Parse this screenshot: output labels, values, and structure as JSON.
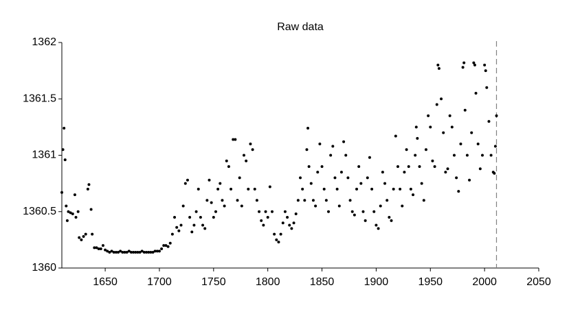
{
  "chart_data": {
    "type": "scatter",
    "title": "Raw data",
    "x": [
      1610,
      1611,
      1612,
      1613,
      1614,
      1615,
      1616,
      1618,
      1620,
      1622,
      1623,
      1625,
      1626,
      1628,
      1630,
      1632,
      1634,
      1635,
      1637,
      1638,
      1640,
      1642,
      1644,
      1646,
      1648,
      1650,
      1652,
      1654,
      1656,
      1658,
      1660,
      1662,
      1664,
      1666,
      1668,
      1670,
      1672,
      1674,
      1676,
      1678,
      1680,
      1682,
      1684,
      1686,
      1688,
      1690,
      1692,
      1694,
      1696,
      1698,
      1700,
      1702,
      1704,
      1706,
      1708,
      1710,
      1712,
      1714,
      1716,
      1718,
      1720,
      1722,
      1724,
      1726,
      1728,
      1730,
      1732,
      1734,
      1736,
      1738,
      1740,
      1742,
      1744,
      1746,
      1748,
      1750,
      1752,
      1754,
      1756,
      1758,
      1760,
      1762,
      1764,
      1766,
      1768,
      1770,
      1772,
      1774,
      1776,
      1778,
      1780,
      1782,
      1784,
      1786,
      1788,
      1790,
      1792,
      1794,
      1796,
      1798,
      1800,
      1802,
      1804,
      1806,
      1808,
      1810,
      1812,
      1814,
      1816,
      1818,
      1820,
      1822,
      1824,
      1826,
      1828,
      1830,
      1832,
      1834,
      1836,
      1837,
      1838,
      1840,
      1842,
      1844,
      1846,
      1848,
      1850,
      1852,
      1854,
      1856,
      1858,
      1860,
      1862,
      1864,
      1866,
      1868,
      1870,
      1872,
      1874,
      1876,
      1878,
      1880,
      1882,
      1884,
      1886,
      1888,
      1890,
      1892,
      1894,
      1896,
      1898,
      1900,
      1902,
      1904,
      1906,
      1908,
      1910,
      1912,
      1914,
      1916,
      1918,
      1920,
      1922,
      1924,
      1926,
      1928,
      1930,
      1932,
      1934,
      1936,
      1937,
      1938,
      1940,
      1942,
      1944,
      1946,
      1948,
      1950,
      1952,
      1954,
      1956,
      1957,
      1958,
      1960,
      1962,
      1964,
      1966,
      1968,
      1970,
      1972,
      1974,
      1976,
      1978,
      1980,
      1981,
      1982,
      1984,
      1986,
      1988,
      1990,
      1991,
      1992,
      1994,
      1996,
      1998,
      2000,
      2001,
      2002,
      2004,
      2006,
      2008,
      2009,
      2010,
      2011
    ],
    "y": [
      1360.67,
      1361.05,
      1361.24,
      1360.96,
      1360.55,
      1360.42,
      1360.5,
      1360.49,
      1360.48,
      1360.65,
      1360.45,
      1360.5,
      1360.27,
      1360.25,
      1360.28,
      1360.3,
      1360.7,
      1360.74,
      1360.52,
      1360.3,
      1360.18,
      1360.18,
      1360.17,
      1360.17,
      1360.2,
      1360.16,
      1360.15,
      1360.14,
      1360.15,
      1360.14,
      1360.14,
      1360.14,
      1360.15,
      1360.14,
      1360.14,
      1360.14,
      1360.15,
      1360.14,
      1360.14,
      1360.14,
      1360.14,
      1360.14,
      1360.15,
      1360.14,
      1360.14,
      1360.14,
      1360.14,
      1360.14,
      1360.15,
      1360.15,
      1360.15,
      1360.17,
      1360.2,
      1360.2,
      1360.19,
      1360.22,
      1360.3,
      1360.45,
      1360.36,
      1360.33,
      1360.38,
      1360.55,
      1360.75,
      1360.78,
      1360.45,
      1360.32,
      1360.38,
      1360.5,
      1360.7,
      1360.45,
      1360.38,
      1360.35,
      1360.6,
      1360.78,
      1360.58,
      1360.45,
      1360.5,
      1360.7,
      1360.75,
      1360.6,
      1360.55,
      1360.95,
      1360.9,
      1360.7,
      1361.14,
      1361.14,
      1360.6,
      1360.8,
      1360.55,
      1361.0,
      1360.95,
      1360.7,
      1361.1,
      1361.05,
      1360.7,
      1360.6,
      1360.5,
      1360.42,
      1360.38,
      1360.5,
      1360.45,
      1360.72,
      1360.5,
      1360.3,
      1360.25,
      1360.23,
      1360.3,
      1360.4,
      1360.5,
      1360.45,
      1360.38,
      1360.35,
      1360.4,
      1360.48,
      1360.6,
      1360.8,
      1360.7,
      1360.6,
      1361.05,
      1361.24,
      1360.9,
      1360.75,
      1360.6,
      1360.55,
      1360.85,
      1361.1,
      1360.9,
      1360.7,
      1360.6,
      1360.5,
      1361.0,
      1361.08,
      1360.8,
      1360.7,
      1360.55,
      1360.85,
      1361.12,
      1361.0,
      1360.8,
      1360.6,
      1360.5,
      1360.47,
      1360.7,
      1360.9,
      1360.75,
      1360.5,
      1360.42,
      1360.8,
      1360.98,
      1360.7,
      1360.5,
      1360.38,
      1360.35,
      1360.55,
      1360.85,
      1360.75,
      1360.6,
      1360.45,
      1360.42,
      1360.7,
      1361.17,
      1360.9,
      1360.7,
      1360.55,
      1360.85,
      1361.05,
      1360.9,
      1360.7,
      1360.65,
      1361.0,
      1361.25,
      1361.15,
      1360.9,
      1360.75,
      1360.6,
      1361.05,
      1361.35,
      1361.25,
      1360.95,
      1360.9,
      1361.45,
      1361.8,
      1361.77,
      1361.5,
      1361.2,
      1360.85,
      1360.88,
      1361.35,
      1361.25,
      1361.0,
      1360.8,
      1360.68,
      1361.1,
      1361.78,
      1361.82,
      1361.4,
      1361.0,
      1360.78,
      1361.2,
      1361.82,
      1361.8,
      1361.55,
      1361.1,
      1360.88,
      1361.0,
      1361.8,
      1361.75,
      1361.6,
      1361.3,
      1361.0,
      1360.85,
      1360.84,
      1361.08,
      1361.35
    ],
    "color": "#000000",
    "xlim": [
      1610,
      2050
    ],
    "xticks": [
      1650,
      1700,
      1750,
      1800,
      1850,
      1900,
      1950,
      2000,
      2050
    ],
    "ylim": [
      1360,
      1362
    ],
    "yticks": [
      1360,
      1360.5,
      1361,
      1361.5,
      1362
    ],
    "vline_x": 2011,
    "vline_color": "#808080",
    "grid": false
  }
}
